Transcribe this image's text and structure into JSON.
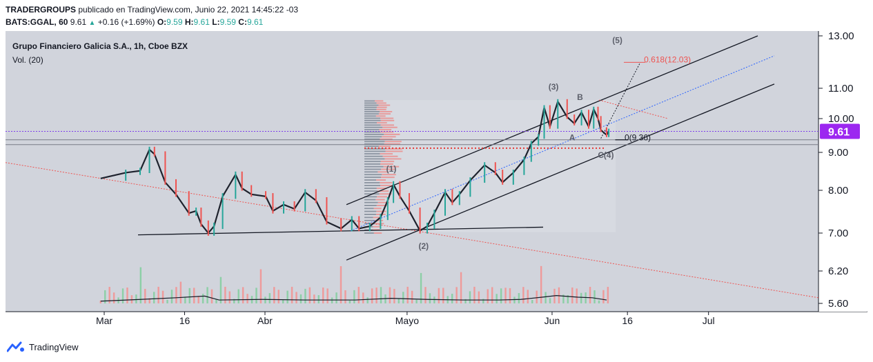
{
  "header": {
    "publisher": "TRADERGROUPS",
    "published_text": "publicado en TradingView.com, Junio 22, 2021 14:45:22 -03",
    "symbol": "BATS:GGAL, 60",
    "last": "9.61",
    "change": "+0.16 (+1.69%)",
    "open_label": "O:",
    "open": "9.59",
    "high_label": "H:",
    "high": "9.61",
    "low_label": "L:",
    "low": "9.59",
    "close_label": "C:",
    "close": "9.61"
  },
  "legend": {
    "title": "Grupo Financiero Galicia S.A., 1h, Cboe BZX",
    "volume": "Vol. (20)"
  },
  "footer": {
    "brand": "TradingView",
    "logo_icon": "tradingview-logo-icon"
  },
  "chart_data": {
    "type": "candlestick",
    "symbol": "GGAL",
    "interval": "1h",
    "y_axis": {
      "ticks": [
        "5.60",
        "6.20",
        "7.00",
        "8.00",
        "9.00",
        "10.00",
        "11.00",
        "13.00"
      ]
    },
    "x_axis": {
      "ticks": [
        "Mar",
        "16",
        "Abr",
        "Mayo",
        "Jun",
        "16",
        "Jul"
      ]
    },
    "current_price": 9.61,
    "current_price_label": "9.61",
    "price_path": [
      [
        -0.5,
        8.3
      ],
      [
        3,
        8.45
      ],
      [
        5,
        8.5
      ],
      [
        6.3,
        9.08
      ],
      [
        7,
        8.95
      ],
      [
        8.5,
        8.2
      ],
      [
        10,
        7.9
      ],
      [
        11.8,
        7.45
      ],
      [
        12.8,
        7.5
      ],
      [
        13.5,
        7.2
      ],
      [
        14.5,
        7.0
      ],
      [
        15.3,
        7.15
      ],
      [
        16.5,
        7.85
      ],
      [
        18.3,
        8.4
      ],
      [
        19.2,
        8.05
      ],
      [
        20.5,
        7.9
      ],
      [
        22.5,
        7.85
      ],
      [
        23.5,
        7.5
      ],
      [
        25,
        7.65
      ],
      [
        26.5,
        7.55
      ],
      [
        28,
        7.95
      ],
      [
        29.5,
        7.75
      ],
      [
        31,
        7.25
      ],
      [
        33,
        7.1
      ],
      [
        34.5,
        7.3
      ],
      [
        35.5,
        7.1
      ],
      [
        37,
        7.15
      ],
      [
        38.5,
        7.35
      ],
      [
        39.5,
        7.75
      ],
      [
        40.3,
        8.15
      ],
      [
        41.2,
        7.85
      ],
      [
        42.5,
        7.5
      ],
      [
        44,
        7.05
      ],
      [
        45,
        7.15
      ],
      [
        46,
        7.45
      ],
      [
        47.5,
        7.95
      ],
      [
        48.5,
        7.7
      ],
      [
        49.5,
        7.9
      ],
      [
        51,
        8.25
      ],
      [
        53,
        8.65
      ],
      [
        54.5,
        8.45
      ],
      [
        55.5,
        8.2
      ],
      [
        57,
        8.45
      ],
      [
        58.5,
        8.8
      ],
      [
        59.5,
        9.25
      ],
      [
        60.5,
        9.45
      ],
      [
        61.3,
        10.35
      ],
      [
        62.1,
        9.75
      ],
      [
        63.2,
        10.55
      ],
      [
        64.5,
        10.05
      ],
      [
        65.5,
        9.85
      ],
      [
        66.5,
        10.2
      ],
      [
        67.5,
        9.75
      ],
      [
        68.2,
        10.3
      ],
      [
        68.8,
        10.0
      ],
      [
        69.2,
        9.65
      ],
      [
        70,
        9.5
      ],
      [
        70.3,
        9.61
      ]
    ],
    "volume_path": [
      [
        -0.5,
        5.64
      ],
      [
        5,
        5.67
      ],
      [
        10,
        5.7
      ],
      [
        14,
        5.73
      ],
      [
        16,
        5.66
      ],
      [
        22,
        5.67
      ],
      [
        28,
        5.66
      ],
      [
        35,
        5.66
      ],
      [
        40,
        5.69
      ],
      [
        45,
        5.67
      ],
      [
        50,
        5.66
      ],
      [
        55,
        5.66
      ],
      [
        58,
        5.67
      ],
      [
        61,
        5.71
      ],
      [
        63,
        5.74
      ],
      [
        66,
        5.71
      ],
      [
        68,
        5.7
      ],
      [
        70,
        5.66
      ]
    ],
    "annotations": [
      {
        "text": "(1)",
        "t": 40.0,
        "price": 8.48
      },
      {
        "text": "(2)",
        "t": 44.5,
        "price": 6.65
      },
      {
        "text": "(3)",
        "t": 62.6,
        "price": 10.95
      },
      {
        "text": "A",
        "t": 65.2,
        "price": 9.35
      },
      {
        "text": "B",
        "t": 66.3,
        "price": 10.6
      },
      {
        "text": "C",
        "t": 69.2,
        "price": 8.85
      },
      {
        "text": "(4)",
        "t": 70.3,
        "price": 8.85
      },
      {
        "text": "(5)",
        "t": 71.5,
        "price": 12.7
      },
      {
        "text": "0.618(12.03)",
        "t": 75.2,
        "price": 11.95
      },
      {
        "text": "0(9.36)",
        "t": 72.5,
        "price": 9.35
      }
    ]
  }
}
